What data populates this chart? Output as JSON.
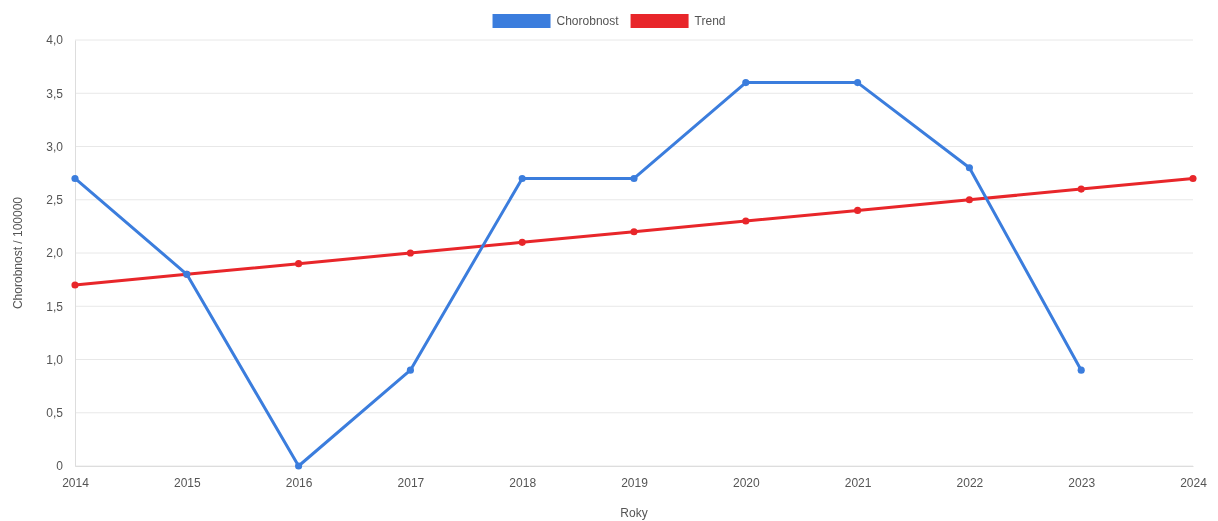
{
  "chart_data": {
    "type": "line",
    "xlabel": "Roky",
    "ylabel": "Chorobnost / 100000",
    "categories": [
      "2014",
      "2015",
      "2016",
      "2017",
      "2018",
      "2019",
      "2020",
      "2021",
      "2022",
      "2023",
      "2024"
    ],
    "series": [
      {
        "name": "Chorobnost",
        "color": "#3b7ddd",
        "values": [
          2.7,
          1.8,
          0,
          0.9,
          2.7,
          2.7,
          3.6,
          3.6,
          2.8,
          0.9,
          null
        ]
      },
      {
        "name": "Trend",
        "color": "#e8262a",
        "values": [
          1.7,
          1.8,
          1.9,
          2.0,
          2.1,
          2.2,
          2.3,
          2.4,
          2.5,
          2.6,
          2.7
        ]
      }
    ],
    "ylim": [
      0,
      4
    ],
    "yticks": [
      {
        "value": 0,
        "label": "0"
      },
      {
        "value": 0.5,
        "label": "0,5"
      },
      {
        "value": 1,
        "label": "1,0"
      },
      {
        "value": 1.5,
        "label": "1,5"
      },
      {
        "value": 2,
        "label": "2,0"
      },
      {
        "value": 2.5,
        "label": "2,5"
      },
      {
        "value": 3,
        "label": "3,0"
      },
      {
        "value": 3.5,
        "label": "3,5"
      },
      {
        "value": 4,
        "label": "4,0"
      }
    ],
    "grid": "y",
    "legend": "top",
    "marker": "circle",
    "line_style": "solid"
  }
}
